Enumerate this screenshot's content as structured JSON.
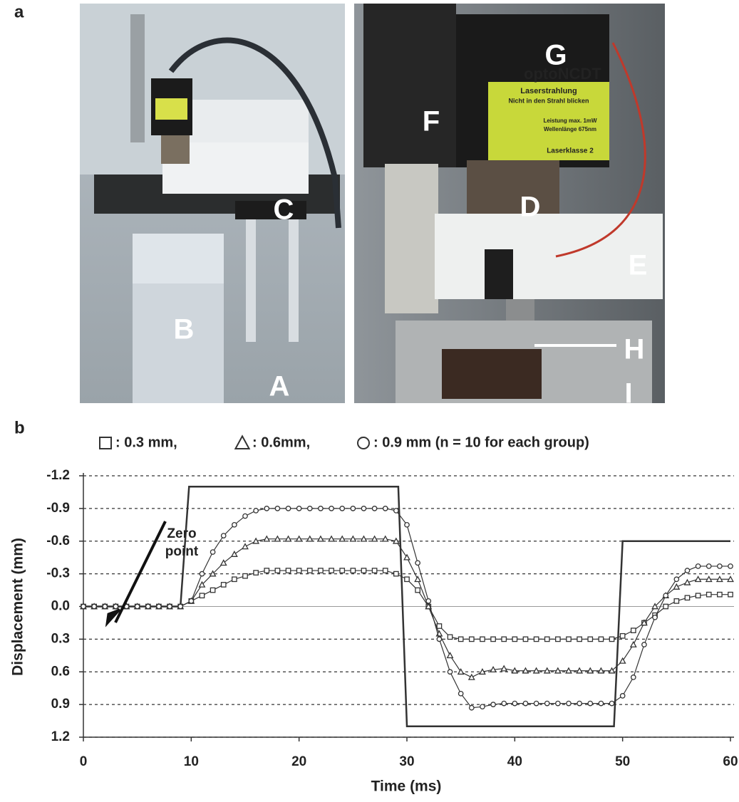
{
  "panel_labels": [
    "a",
    "b"
  ],
  "photo_left": {
    "labels": [
      "A",
      "B",
      "C"
    ]
  },
  "photo_right": {
    "labels": [
      "D",
      "E",
      "F",
      "G",
      "H",
      "I"
    ],
    "sensor_brand": "optoNCDT",
    "warning": [
      "Laserstrahlung",
      "Nicht in den Strahl blicken",
      "Leistung max. 1mW",
      "Wellenlänge 675nm",
      "Laserklasse 2"
    ]
  },
  "chart_data": {
    "type": "line",
    "xlabel": "Time (ms)",
    "ylabel": "Displacement (mm)",
    "annotation": [
      "Zero",
      "point"
    ],
    "xlim": [
      0,
      60
    ],
    "xticks": [
      0,
      10,
      20,
      30,
      40,
      50,
      60
    ],
    "ylim": [
      1.2,
      -1.2
    ],
    "yticks": [
      -1.2,
      -0.9,
      -0.6,
      -0.3,
      {
        "value": 0,
        "label": "0.0"
      },
      0.3,
      0.6,
      0.9,
      1.2
    ],
    "grid": true,
    "stimulus": {
      "color": "#333333",
      "x": [
        0,
        9,
        9.8,
        29.2,
        30,
        49.2,
        50,
        60
      ],
      "values": [
        0,
        0,
        -1.1,
        -1.1,
        1.1,
        1.1,
        -0.6,
        -0.6
      ]
    },
    "x": [
      0,
      1,
      2,
      3,
      4,
      5,
      6,
      7,
      8,
      9,
      10,
      11,
      12,
      13,
      14,
      15,
      16,
      17,
      18,
      19,
      20,
      21,
      22,
      23,
      24,
      25,
      26,
      27,
      28,
      29,
      30,
      31,
      32,
      33,
      34,
      35,
      36,
      37,
      38,
      39,
      40,
      41,
      42,
      43,
      44,
      45,
      46,
      47,
      48,
      49,
      50,
      51,
      52,
      53,
      54,
      55,
      56,
      57,
      58,
      59,
      60
    ],
    "series": [
      {
        "name": ": 0.3 mm,",
        "marker": "square",
        "color": "#333333",
        "values": [
          0,
          0,
          0,
          0,
          0,
          0,
          0,
          0,
          0,
          0,
          -0.05,
          -0.1,
          -0.15,
          -0.2,
          -0.25,
          -0.28,
          -0.31,
          -0.33,
          -0.33,
          -0.33,
          -0.33,
          -0.33,
          -0.33,
          -0.33,
          -0.33,
          -0.33,
          -0.33,
          -0.33,
          -0.33,
          -0.3,
          -0.25,
          -0.15,
          0,
          0.18,
          0.28,
          0.3,
          0.3,
          0.3,
          0.3,
          0.3,
          0.3,
          0.3,
          0.3,
          0.3,
          0.3,
          0.3,
          0.3,
          0.3,
          0.3,
          0.3,
          0.27,
          0.22,
          0.15,
          0.08,
          0,
          -0.05,
          -0.08,
          -0.1,
          -0.11,
          -0.11,
          -0.11
        ]
      },
      {
        "name": ": 0.6mm,",
        "marker": "triangle",
        "color": "#333333",
        "values": [
          0,
          0,
          0,
          0,
          0,
          0,
          0,
          0,
          0,
          0,
          -0.05,
          -0.2,
          -0.3,
          -0.4,
          -0.48,
          -0.55,
          -0.6,
          -0.62,
          -0.62,
          -0.62,
          -0.62,
          -0.62,
          -0.62,
          -0.62,
          -0.62,
          -0.62,
          -0.62,
          -0.62,
          -0.62,
          -0.6,
          -0.45,
          -0.25,
          0,
          0.25,
          0.45,
          0.6,
          0.65,
          0.6,
          0.58,
          0.57,
          0.59,
          0.59,
          0.59,
          0.59,
          0.59,
          0.59,
          0.59,
          0.59,
          0.59,
          0.59,
          0.5,
          0.35,
          0.15,
          0,
          -0.1,
          -0.18,
          -0.22,
          -0.25,
          -0.25,
          -0.25,
          -0.25
        ]
      },
      {
        "name": ": 0.9 mm (n = 10 for each group)",
        "marker": "circle",
        "color": "#333333",
        "values": [
          0,
          0,
          0,
          0,
          0,
          0,
          0,
          0,
          0,
          0,
          -0.05,
          -0.3,
          -0.5,
          -0.65,
          -0.75,
          -0.83,
          -0.88,
          -0.9,
          -0.9,
          -0.9,
          -0.9,
          -0.9,
          -0.9,
          -0.9,
          -0.9,
          -0.9,
          -0.9,
          -0.9,
          -0.9,
          -0.88,
          -0.75,
          -0.4,
          -0.05,
          0.3,
          0.6,
          0.8,
          0.93,
          0.92,
          0.9,
          0.89,
          0.89,
          0.89,
          0.89,
          0.89,
          0.89,
          0.89,
          0.89,
          0.89,
          0.89,
          0.89,
          0.82,
          0.65,
          0.35,
          0.1,
          -0.1,
          -0.25,
          -0.33,
          -0.37,
          -0.37,
          -0.37,
          -0.37
        ]
      }
    ]
  }
}
